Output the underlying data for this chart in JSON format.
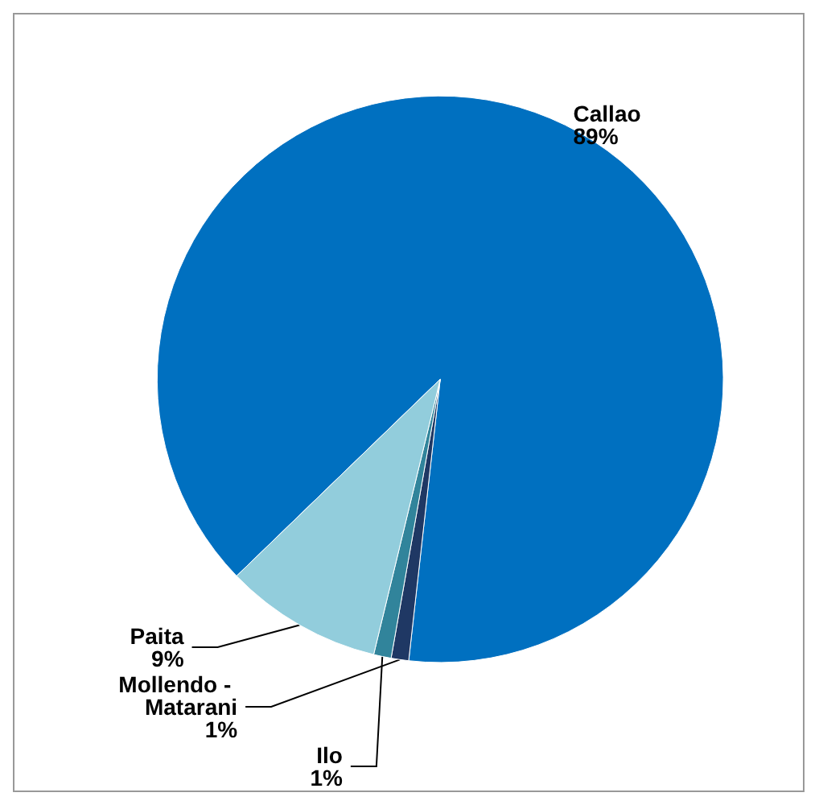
{
  "chart_data": {
    "type": "pie",
    "categories": [
      "Callao",
      "Mollendo - Matarani",
      "Ilo",
      "Paita"
    ],
    "values": [
      89,
      1,
      1,
      9
    ],
    "colors": [
      "#0070c0",
      "#1f3864",
      "#31849b",
      "#92cddc"
    ],
    "value_labels": [
      "89%",
      "1%",
      "1%",
      "9%"
    ],
    "legend": false
  }
}
